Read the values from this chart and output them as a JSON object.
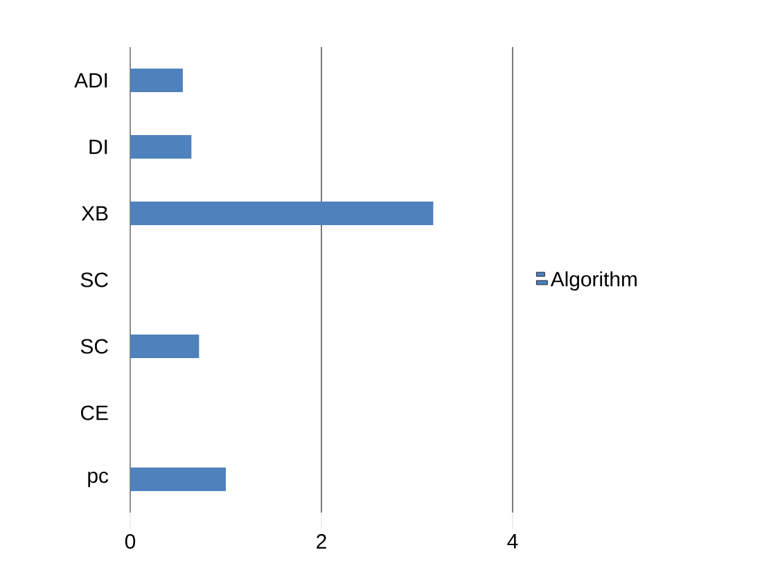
{
  "chart_data": {
    "type": "bar",
    "orientation": "horizontal",
    "categories": [
      "ADI",
      "DI",
      "XB",
      "SC",
      "SC",
      "CE",
      "pc"
    ],
    "series": [
      {
        "name": "Algorithm",
        "color": "#4f81bd",
        "values": [
          0.55,
          0.64,
          3.17,
          0,
          0.72,
          0,
          1.0
        ]
      }
    ],
    "xlim": [
      0,
      4
    ],
    "xticks": [
      0,
      2,
      4
    ],
    "grid": "x",
    "legend": "right"
  }
}
